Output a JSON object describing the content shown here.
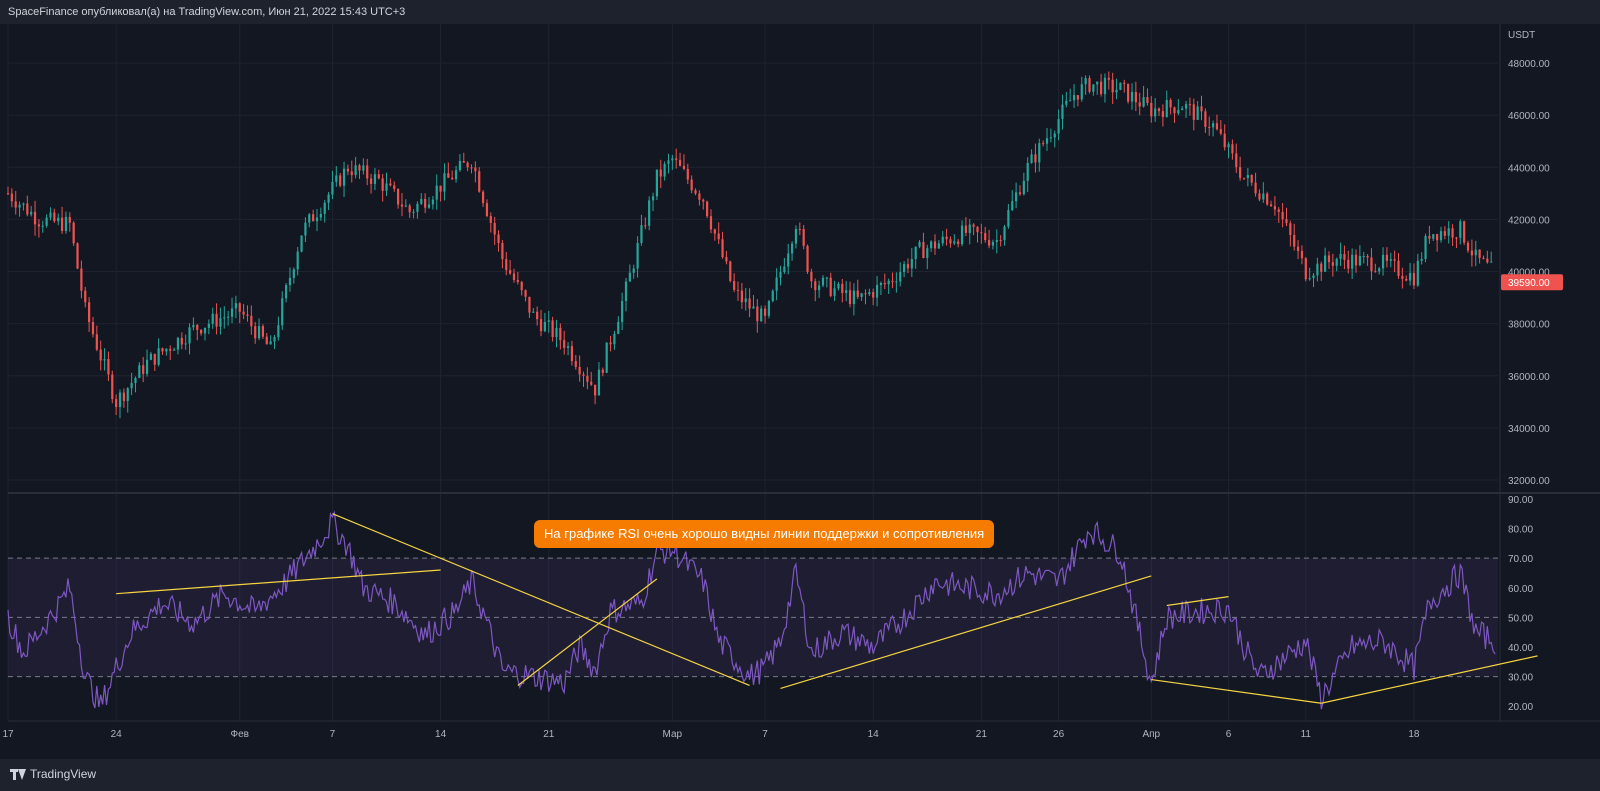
{
  "header": {
    "attribution": "SpaceFinance опубликовал(а) на TradingView.com, Июн 21, 2022 15:43 UTC+3"
  },
  "annotation": {
    "text": "На графике RSI очень хорошо видны линии поддержки и сопротивления"
  },
  "footer": {
    "brand": "TradingView",
    "logo_icon": "tradingview-logo-icon"
  },
  "colors": {
    "background": "#131722",
    "up": "#26a69a",
    "down": "#ef5350",
    "rsi": "#7e57c2",
    "trendline": "#f5d442",
    "price_tag": "#ef5350",
    "annotation_bg": "#f57c00"
  },
  "chart_data": [
    {
      "type": "candlestick",
      "title": "",
      "currency": "USDT",
      "ylim": [
        31500,
        49500
      ],
      "y_ticks": [
        "32000.00",
        "34000.00",
        "36000.00",
        "38000.00",
        "40000.00",
        "42000.00",
        "44000.00",
        "46000.00",
        "48000.00"
      ],
      "last_price": "39590.00",
      "x_tick_labels": [
        "17",
        "24",
        "Фев",
        "7",
        "14",
        "21",
        "Мар",
        "7",
        "14",
        "21",
        "26",
        "Апр",
        "6",
        "11",
        "18"
      ],
      "trend_points": [
        [
          "Jan 17",
          43000
        ],
        [
          "Jan 19",
          42000
        ],
        [
          "Jan 21",
          41800
        ],
        [
          "Jan 22",
          38500
        ],
        [
          "Jan 24",
          35000
        ],
        [
          "Jan 26",
          36500
        ],
        [
          "Jan 29",
          37800
        ],
        [
          "Feb 1",
          38500
        ],
        [
          "Feb 3",
          37000
        ],
        [
          "Feb 5",
          41500
        ],
        [
          "Feb 8",
          44000
        ],
        [
          "Feb 10",
          43500
        ],
        [
          "Feb 12",
          42300
        ],
        [
          "Feb 15",
          43800
        ],
        [
          "Feb 16",
          44300
        ],
        [
          "Feb 18",
          40500
        ],
        [
          "Feb 20",
          38300
        ],
        [
          "Feb 22",
          37300
        ],
        [
          "Feb 24",
          35500
        ],
        [
          "Feb 26",
          39300
        ],
        [
          "Feb 28",
          43600
        ],
        [
          "Mar 1",
          44300
        ],
        [
          "Mar 3",
          42800
        ],
        [
          "Mar 5",
          39200
        ],
        [
          "Mar 7",
          38100
        ],
        [
          "Mar 9",
          41900
        ],
        [
          "Mar 10",
          39700
        ],
        [
          "Mar 13",
          38900
        ],
        [
          "Mar 15",
          39600
        ],
        [
          "Mar 17",
          40800
        ],
        [
          "Mar 20",
          41500
        ],
        [
          "Mar 22",
          41200
        ],
        [
          "Mar 24",
          44000
        ],
        [
          "Mar 27",
          46800
        ],
        [
          "Mar 28",
          47200
        ],
        [
          "Mar 30",
          47000
        ],
        [
          "Apr 1",
          46200
        ],
        [
          "Apr 3",
          46400
        ],
        [
          "Apr 5",
          45600
        ],
        [
          "Apr 7",
          43600
        ],
        [
          "Apr 9",
          42600
        ],
        [
          "Apr 11",
          40000
        ],
        [
          "Apr 13",
          40500
        ],
        [
          "Apr 16",
          40300
        ],
        [
          "Apr 18",
          39800
        ],
        [
          "Apr 19",
          41500
        ],
        [
          "Apr 21",
          41600
        ],
        [
          "Apr 22",
          40500
        ],
        [
          "Apr 24",
          39600
        ]
      ]
    },
    {
      "type": "line",
      "title": "",
      "series": [
        {
          "values_note": "",
          "name": ""
        }
      ],
      "ylim": [
        15,
        92
      ],
      "y_ticks": [
        "20.00",
        "30.00",
        "40.00",
        "50.00",
        "60.00",
        "70.00",
        "80.00",
        "90.00"
      ],
      "band": [
        30,
        70
      ],
      "midline": 50,
      "rsi_points": [
        [
          "Jan 17",
          50
        ],
        [
          "Jan 18",
          38
        ],
        [
          "Jan 19",
          45
        ],
        [
          "Jan 20",
          52
        ],
        [
          "Jan 21",
          60
        ],
        [
          "Jan 22",
          30
        ],
        [
          "Jan 23",
          20
        ],
        [
          "Jan 24",
          33
        ],
        [
          "Jan 25",
          45
        ],
        [
          "Jan 27",
          55
        ],
        [
          "Jan 29",
          48
        ],
        [
          "Jan 31",
          58
        ],
        [
          "Feb 2",
          52
        ],
        [
          "Feb 4",
          62
        ],
        [
          "Feb 6",
          75
        ],
        [
          "Feb 7",
          82
        ],
        [
          "Feb 8",
          74
        ],
        [
          "Feb 9",
          60
        ],
        [
          "Feb 11",
          55
        ],
        [
          "Feb 13",
          44
        ],
        [
          "Feb 15",
          52
        ],
        [
          "Feb 16",
          62
        ],
        [
          "Feb 17",
          48
        ],
        [
          "Feb 18",
          32
        ],
        [
          "Feb 20",
          30
        ],
        [
          "Feb 22",
          28
        ],
        [
          "Feb 23",
          40
        ],
        [
          "Feb 24",
          32
        ],
        [
          "Feb 25",
          52
        ],
        [
          "Feb 27",
          55
        ],
        [
          "Feb 28",
          72
        ],
        [
          "Mar 1",
          73
        ],
        [
          "Mar 3",
          62
        ],
        [
          "Mar 4",
          42
        ],
        [
          "Mar 6",
          30
        ],
        [
          "Mar 7",
          33
        ],
        [
          "Mar 8",
          42
        ],
        [
          "Mar 9",
          65
        ],
        [
          "Mar 10",
          38
        ],
        [
          "Mar 12",
          45
        ],
        [
          "Mar 14",
          40
        ],
        [
          "Mar 16",
          50
        ],
        [
          "Mar 18",
          62
        ],
        [
          "Mar 20",
          60
        ],
        [
          "Mar 22",
          58
        ],
        [
          "Mar 24",
          65
        ],
        [
          "Mar 26",
          62
        ],
        [
          "Mar 28",
          80
        ],
        [
          "Mar 30",
          72
        ],
        [
          "Apr 1",
          28
        ],
        [
          "Apr 2",
          50
        ],
        [
          "Apr 4",
          52
        ],
        [
          "Apr 6",
          53
        ],
        [
          "Apr 7",
          40
        ],
        [
          "Apr 8",
          30
        ],
        [
          "Apr 10",
          38
        ],
        [
          "Apr 11",
          42
        ],
        [
          "Apr 12",
          23
        ],
        [
          "Apr 14",
          40
        ],
        [
          "Apr 16",
          42
        ],
        [
          "Apr 18",
          33
        ],
        [
          "Apr 19",
          55
        ],
        [
          "Apr 21",
          65
        ],
        [
          "Apr 22",
          45
        ],
        [
          "Apr 24",
          40
        ]
      ]
    }
  ]
}
